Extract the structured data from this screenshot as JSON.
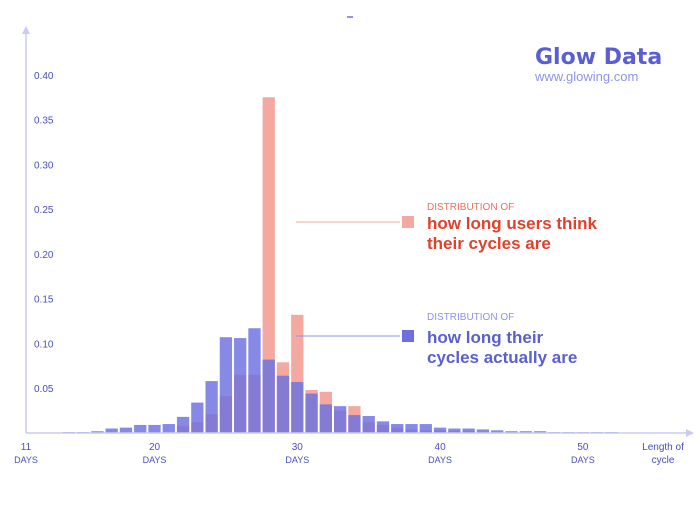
{
  "brand": {
    "name": "Glow Data",
    "url": "www.glowing.com",
    "colors": {
      "title": "#5a5fd0",
      "url": "#8e92e8"
    }
  },
  "legend": {
    "perceived": {
      "prefix": "DISTRIBUTION OF",
      "line1": "how long users think",
      "line2": "their cycles are"
    },
    "actual": {
      "prefix": "DISTRIBUTION OF",
      "line1": "how long their",
      "line2": "cycles actually are"
    }
  },
  "chart_data": {
    "type": "bar",
    "title": "",
    "xlabel": "Length of cycle",
    "ylabel": "",
    "xlim": [
      11,
      54
    ],
    "ylim": [
      0,
      0.43
    ],
    "y_ticks": [
      "0.05",
      "0.10",
      "0.15",
      "0.20",
      "0.25",
      "0.30",
      "0.35",
      "0.40"
    ],
    "y_tick_values": [
      0.05,
      0.1,
      0.15,
      0.2,
      0.25,
      0.3,
      0.35,
      0.4
    ],
    "x_ticks": [
      {
        "value": 11,
        "label": "11",
        "unit": "DAYS"
      },
      {
        "value": 20,
        "label": "20",
        "unit": "DAYS"
      },
      {
        "value": 30,
        "label": "30",
        "unit": "DAYS"
      },
      {
        "value": 40,
        "label": "40",
        "unit": "DAYS"
      },
      {
        "value": 50,
        "label": "50",
        "unit": "DAYS"
      }
    ],
    "x_axis_end_label": [
      "Length of",
      "cycle"
    ],
    "grid": false,
    "colors": {
      "perceived": "#f4a9a0",
      "actual": "#6b70e0",
      "axis": "#c9cbf3",
      "tick_text": "#4a4fb8"
    },
    "series": [
      {
        "name": "how long users think their cycles are",
        "points": [
          [
            22,
            0.008
          ],
          [
            23,
            0.012
          ],
          [
            24,
            0.021
          ],
          [
            25,
            0.041
          ],
          [
            26,
            0.065
          ],
          [
            27,
            0.065
          ],
          [
            28,
            0.375
          ],
          [
            29,
            0.079
          ],
          [
            30,
            0.132
          ],
          [
            31,
            0.048
          ],
          [
            32,
            0.046
          ],
          [
            33,
            0.025
          ],
          [
            34,
            0.03
          ],
          [
            35,
            0.012
          ],
          [
            36,
            0.009
          ],
          [
            37,
            0.006
          ],
          [
            38,
            0.004
          ],
          [
            39,
            0.003
          ],
          [
            40,
            0.003
          ],
          [
            41,
            0.002
          ],
          [
            42,
            0.002
          ]
        ]
      },
      {
        "name": "how long their cycles actually are",
        "points": [
          [
            14,
            0.001
          ],
          [
            15,
            0.001
          ],
          [
            16,
            0.002
          ],
          [
            17,
            0.005
          ],
          [
            18,
            0.006
          ],
          [
            19,
            0.009
          ],
          [
            20,
            0.009
          ],
          [
            21,
            0.01
          ],
          [
            22,
            0.018
          ],
          [
            23,
            0.034
          ],
          [
            24,
            0.058
          ],
          [
            25,
            0.107
          ],
          [
            26,
            0.106
          ],
          [
            27,
            0.117
          ],
          [
            28,
            0.082
          ],
          [
            29,
            0.064
          ],
          [
            30,
            0.057
          ],
          [
            31,
            0.044
          ],
          [
            32,
            0.032
          ],
          [
            33,
            0.03
          ],
          [
            34,
            0.02
          ],
          [
            35,
            0.019
          ],
          [
            36,
            0.013
          ],
          [
            37,
            0.01
          ],
          [
            38,
            0.01
          ],
          [
            39,
            0.01
          ],
          [
            40,
            0.006
          ],
          [
            41,
            0.005
          ],
          [
            42,
            0.005
          ],
          [
            43,
            0.004
          ],
          [
            44,
            0.003
          ],
          [
            45,
            0.002
          ],
          [
            46,
            0.002
          ],
          [
            47,
            0.002
          ],
          [
            48,
            0.001
          ],
          [
            49,
            0.001
          ],
          [
            50,
            0.001
          ],
          [
            51,
            0.001
          ],
          [
            52,
            0.001
          ]
        ]
      }
    ]
  }
}
